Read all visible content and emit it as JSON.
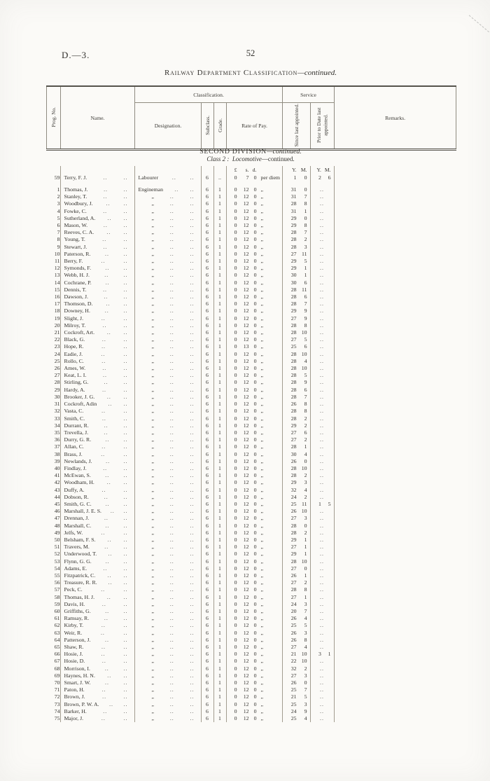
{
  "page": {
    "doc_ref": "D.—3.",
    "page_number": "52"
  },
  "title": {
    "main": "Railway Department Classification",
    "continued": "—continued."
  },
  "table_header": {
    "prog_no": "Prog. No.",
    "name": "Name.",
    "classification": "Classification.",
    "designation": "Designation.",
    "subclass": "Subclass.",
    "grade": "Grade.",
    "rate_of_pay": "Rate of Pay.",
    "service": "Service",
    "since_last": "Since last appointed.",
    "prior_to_date": "Prior to Date last appointed.",
    "remarks": "Remarks."
  },
  "section": {
    "division": "SECOND DIVISION",
    "division_continued": "—continued.",
    "class_label": "Class 2 :",
    "class_name": "Locomotive",
    "class_continued": "—continued."
  },
  "units": {
    "currency": [
      "£",
      "s.",
      "d."
    ],
    "service_y": "Y.",
    "service_m": "M."
  },
  "symbols": {
    "dots": "..",
    "ditto": "„"
  },
  "defaults": {
    "subclass": "6",
    "grade": "1",
    "rate": "0 12 0"
  },
  "carryover_row": {
    "no": "59",
    "name": "Terry, F. J.",
    "designation": "Labourer",
    "subclass": "6",
    "grade": "..",
    "rate": "0 7 0",
    "rate_unit": "per diem",
    "since": "1 0",
    "prior": "2 6"
  },
  "rows": [
    {
      "no": "1",
      "name": "Thomas, J.",
      "designation": "Engineman",
      "since": "31 0"
    },
    {
      "no": "2",
      "name": "Stanley, T.",
      "since": "31 7"
    },
    {
      "no": "3",
      "name": "Woodbury, J.",
      "since": "28 8"
    },
    {
      "no": "4",
      "name": "Fowke, C.",
      "since": "31 1"
    },
    {
      "no": "5",
      "name": "Sutherland, A.",
      "since": "29 0"
    },
    {
      "no": "6",
      "name": "Mason, W.",
      "since": "29 8"
    },
    {
      "no": "7",
      "name": "Reeves, C. A.",
      "since": "28 7"
    },
    {
      "no": "8",
      "name": "Young, T.",
      "since": "28 2"
    },
    {
      "no": "9",
      "name": "Stewart, J.",
      "since": "28 3"
    },
    {
      "no": "10",
      "name": "Paterson, R.",
      "since": "27 11"
    },
    {
      "no": "11",
      "name": "Berry, F.",
      "since": "29 5"
    },
    {
      "no": "12",
      "name": "Symonds, F.",
      "since": "29 1"
    },
    {
      "no": "13",
      "name": "Webb, H. J.",
      "since": "30 1"
    },
    {
      "no": "14",
      "name": "Cochrane, P.",
      "since": "30 6"
    },
    {
      "no": "15",
      "name": "Dennis, T.",
      "since": "28 11"
    },
    {
      "no": "16",
      "name": "Dawson, J.",
      "since": "28 6"
    },
    {
      "no": "17",
      "name": "Thomson, D.",
      "since": "28 7"
    },
    {
      "no": "18",
      "name": "Downey, H.",
      "since": "29 9"
    },
    {
      "no": "19",
      "name": "Slight, J.",
      "since": "27 9"
    },
    {
      "no": "20",
      "name": "Milroy, T.",
      "since": "28 8"
    },
    {
      "no": "21",
      "name": "Cockroft, Art.",
      "since": "28 10"
    },
    {
      "no": "22",
      "name": "Black, G.",
      "since": "27 5"
    },
    {
      "no": "23",
      "name": "Hope, R.",
      "rate": "0 13 0",
      "since": "25 6"
    },
    {
      "no": "24",
      "name": "Eadie, J.",
      "since": "28 10"
    },
    {
      "no": "25",
      "name": "Rollo, C.",
      "since": "28 4"
    },
    {
      "no": "26",
      "name": "Ames, W.",
      "since": "28 10"
    },
    {
      "no": "27",
      "name": "Keat, L. I.",
      "since": "28 5"
    },
    {
      "no": "28",
      "name": "Stirling, G.",
      "since": "28 9"
    },
    {
      "no": "29",
      "name": "Hardy, A.",
      "since": "28 6"
    },
    {
      "no": "30",
      "name": "Brooker, J. G.",
      "since": "28 7"
    },
    {
      "no": "31",
      "name": "Cockroft, Adin",
      "since": "26 8"
    },
    {
      "no": "32",
      "name": "Vasta, C.",
      "since": "28 8"
    },
    {
      "no": "33",
      "name": "Smith, C.",
      "since": "28 2"
    },
    {
      "no": "34",
      "name": "Durrant, R.",
      "since": "29 2"
    },
    {
      "no": "35",
      "name": "Trevella, J.",
      "since": "27 6"
    },
    {
      "no": "36",
      "name": "Durry, G. R.",
      "since": "27 2"
    },
    {
      "no": "37",
      "name": "Allan, C.",
      "since": "28 1"
    },
    {
      "no": "38",
      "name": "Brass, J.",
      "since": "30 4"
    },
    {
      "no": "39",
      "name": "Newlands, J.",
      "since": "26 0"
    },
    {
      "no": "40",
      "name": "Findlay, J.",
      "since": "28 10"
    },
    {
      "no": "41",
      "name": "McEwan, S.",
      "since": "28 2"
    },
    {
      "no": "42",
      "name": "Woodham, H.",
      "since": "29 3"
    },
    {
      "no": "43",
      "name": "Duffy, A.",
      "since": "32 4"
    },
    {
      "no": "44",
      "name": "Dobson, R.",
      "since": "24 2"
    },
    {
      "no": "45",
      "name": "Smith, G. C.",
      "since": "25 11",
      "prior": "1 5"
    },
    {
      "no": "46",
      "name": "Marshall, J. E. S.",
      "since": "26 10"
    },
    {
      "no": "47",
      "name": "Drennan, J.",
      "since": "27 3"
    },
    {
      "no": "48",
      "name": "Marshall, C.",
      "since": "28 0"
    },
    {
      "no": "49",
      "name": "Jelfs, W.",
      "since": "28 2"
    },
    {
      "no": "50",
      "name": "Belsham, F. S.",
      "since": "29 1"
    },
    {
      "no": "51",
      "name": "Travers, M.",
      "since": "27 1"
    },
    {
      "no": "52",
      "name": "Underwood, T.",
      "since": "29 1"
    },
    {
      "no": "53",
      "name": "Flynn, G. G.",
      "since": "28 10"
    },
    {
      "no": "54",
      "name": "Adams, E.",
      "since": "27 0"
    },
    {
      "no": "55",
      "name": "Fitzpatrick, C.",
      "since": "26 1"
    },
    {
      "no": "56",
      "name": "Treasure, R. R.",
      "since": "27 2"
    },
    {
      "no": "57",
      "name": "Peck, C.",
      "since": "28 8"
    },
    {
      "no": "58",
      "name": "Thomas, H. J.",
      "since": "27 1"
    },
    {
      "no": "59",
      "name": "Davis, H.",
      "since": "24 3"
    },
    {
      "no": "60",
      "name": "Griffiths, G.",
      "since": "20 7"
    },
    {
      "no": "61",
      "name": "Ramsay, R.",
      "since": "26 4"
    },
    {
      "no": "62",
      "name": "Kirby, T.",
      "since": "25 5"
    },
    {
      "no": "63",
      "name": "Weir, R.",
      "since": "26 3"
    },
    {
      "no": "64",
      "name": "Patterson, J.",
      "since": "26 8"
    },
    {
      "no": "65",
      "name": "Shaw, R.",
      "since": "27 4"
    },
    {
      "no": "66",
      "name": "Hosie, J.",
      "since": "21 10",
      "prior": "3 1"
    },
    {
      "no": "67",
      "name": "Hosie, D.",
      "since": "22 10"
    },
    {
      "no": "68",
      "name": "Morrison, I.",
      "since": "32 2"
    },
    {
      "no": "69",
      "name": "Haynes, H. N.",
      "since": "27 3"
    },
    {
      "no": "70",
      "name": "Smart, J. W.",
      "since": "26 0"
    },
    {
      "no": "71",
      "name": "Paton, H.",
      "since": "25 7"
    },
    {
      "no": "72",
      "name": "Brown, J.",
      "since": "21 5"
    },
    {
      "no": "73",
      "name": "Brown, P. W. A.",
      "since": "25 3"
    },
    {
      "no": "74",
      "name": "Barker, H.",
      "since": "24 9"
    },
    {
      "no": "75",
      "name": "Major, J.",
      "since": "25 4"
    }
  ]
}
